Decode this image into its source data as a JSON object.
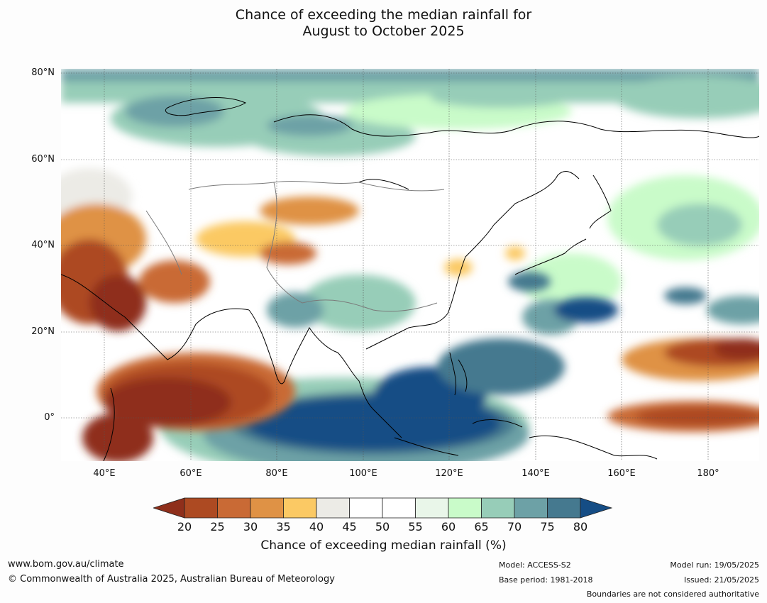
{
  "title": {
    "line1": "Chance of exceeding the median rainfall for",
    "line2": "August to October 2025"
  },
  "map": {
    "lat_labels": [
      "80°N",
      "60°N",
      "40°N",
      "20°N",
      "0°"
    ],
    "lon_labels": [
      "40°E",
      "60°E",
      "80°E",
      "100°E",
      "120°E",
      "140°E",
      "160°E",
      "180°"
    ],
    "extent": {
      "lon_min": 30,
      "lon_max": 192,
      "lat_min": -10,
      "lat_max": 80
    }
  },
  "colorbar": {
    "ticks": [
      "20",
      "25",
      "30",
      "35",
      "40",
      "45",
      "50",
      "55",
      "60",
      "65",
      "70",
      "75",
      "80"
    ],
    "colors": [
      "#8f2f1b",
      "#ad4a22",
      "#c96a35",
      "#df9245",
      "#fbc964",
      "#ecebe6",
      "#ffffff",
      "#ffffff",
      "#e9f6e9",
      "#c9fbc9",
      "#97cdb8",
      "#6da1a6",
      "#45798f",
      "#154d85"
    ],
    "label": "Chance of exceeding median rainfall (%)"
  },
  "footer": {
    "url": "www.bom.gov.au/climate",
    "copyright": "© Commonwealth of Australia 2025, Australian Bureau of Meteorology",
    "model": "Model: ACCESS-S2",
    "base_period": "Base period: 1981-2018",
    "model_run": "Model run: 19/05/2025",
    "issued": "Issued: 21/05/2025",
    "disclaimer": "Boundaries are not considered authoritative"
  }
}
